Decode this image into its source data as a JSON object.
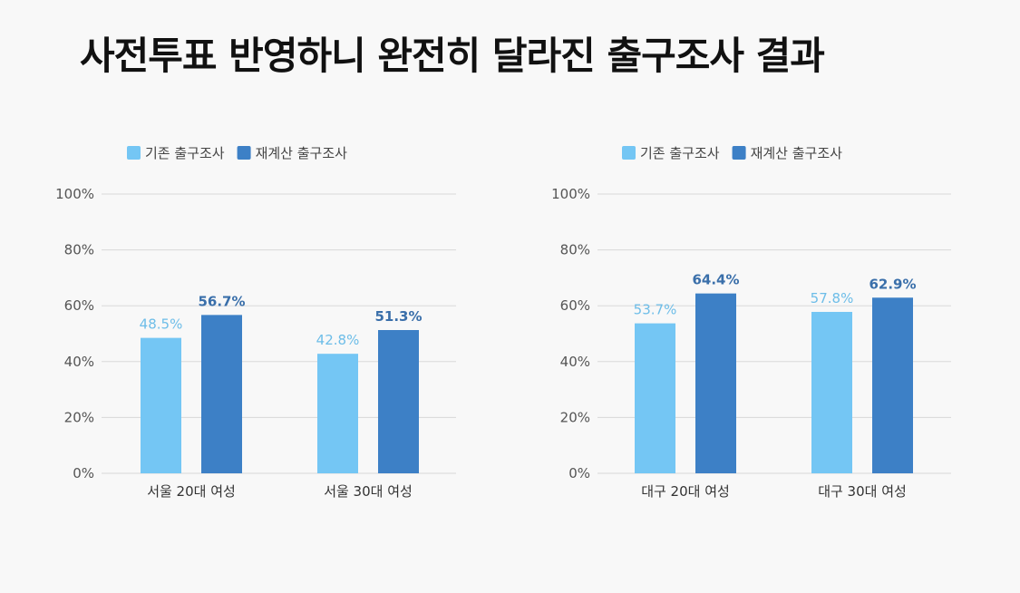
{
  "title": "사전투표 반영하니 완전히 달라진 출구조사 결과",
  "colors": {
    "light": "#74c6f4",
    "dark": "#3d80c6",
    "grid": "#d9d9d9",
    "light_label": "#6dbde8",
    "dark_label": "#3a6faa"
  },
  "chart_data": [
    {
      "type": "bar",
      "categories": [
        "서울 20대 여성",
        "서울 30대 여성"
      ],
      "series": [
        {
          "name": "기존 출구조사",
          "values": [
            48.5,
            42.8
          ],
          "labels": [
            "48.5%",
            "42.8%"
          ]
        },
        {
          "name": "재계산 출구조사",
          "values": [
            56.7,
            51.3
          ],
          "labels": [
            "56.7%",
            "51.3%"
          ]
        }
      ],
      "ylim": [
        0,
        100
      ],
      "yticks": [
        "0%",
        "20%",
        "40%",
        "60%",
        "80%",
        "100%"
      ],
      "grid": true,
      "legend": "top-left"
    },
    {
      "type": "bar",
      "categories": [
        "대구 20대 여성",
        "대구 30대 여성"
      ],
      "series": [
        {
          "name": "기존 출구조사",
          "values": [
            53.7,
            57.8
          ],
          "labels": [
            "53.7%",
            "57.8%"
          ]
        },
        {
          "name": "재계산 출구조사",
          "values": [
            64.4,
            62.9
          ],
          "labels": [
            "64.4%",
            "62.9%"
          ]
        }
      ],
      "ylim": [
        0,
        100
      ],
      "yticks": [
        "0%",
        "20%",
        "40%",
        "60%",
        "80%",
        "100%"
      ],
      "grid": true,
      "legend": "top-left"
    }
  ]
}
